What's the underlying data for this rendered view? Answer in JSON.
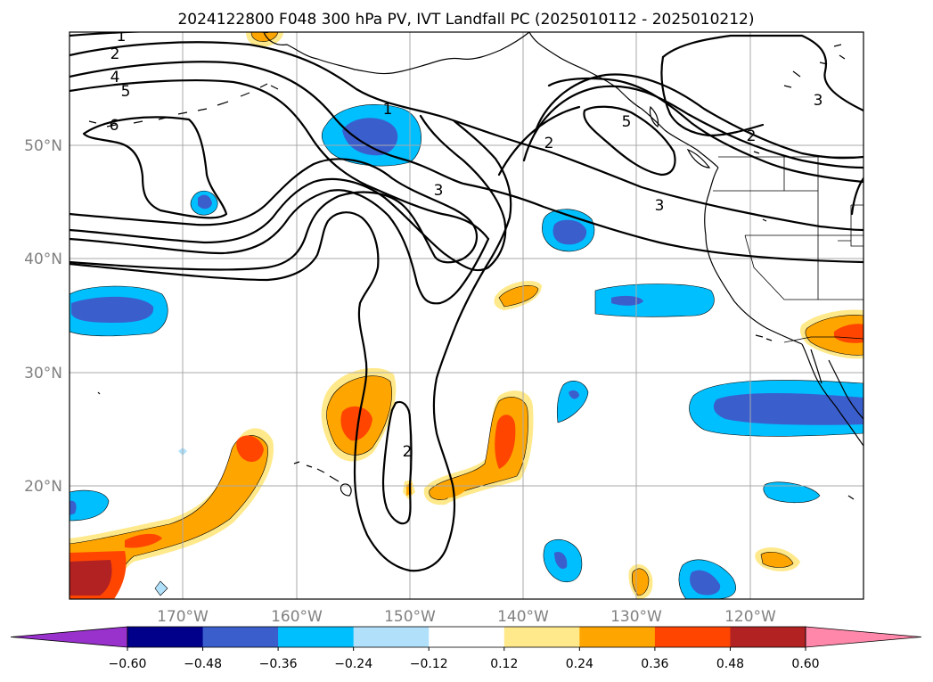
{
  "title": "2024122800 F048 300 hPa PV, IVT Landfall PC (2025010112 - 2025010212)",
  "lat_labels": [
    "50°N",
    "40°N",
    "30°N",
    "20°N"
  ],
  "lon_labels": [
    "170°W",
    "160°W",
    "150°W",
    "140°W",
    "130°W",
    "120°W"
  ],
  "colorbar": {
    "tick_labels": [
      "−0.60",
      "−0.48",
      "−0.36",
      "−0.24",
      "−0.12",
      "0.12",
      "0.24",
      "0.36",
      "0.48",
      "0.60"
    ],
    "colors": [
      "#9932cc",
      "#00008b",
      "#3a5fcd",
      "#00bfff",
      "#b0e0fa",
      "#ffffff",
      "#ffe98a",
      "#ffa500",
      "#ff4500",
      "#b22222",
      "#ff88aa"
    ]
  },
  "contour_labels": [
    "1",
    "2",
    "4",
    "5",
    "6",
    "1",
    "3",
    "2",
    "5",
    "3",
    "2",
    "3",
    "2"
  ]
}
